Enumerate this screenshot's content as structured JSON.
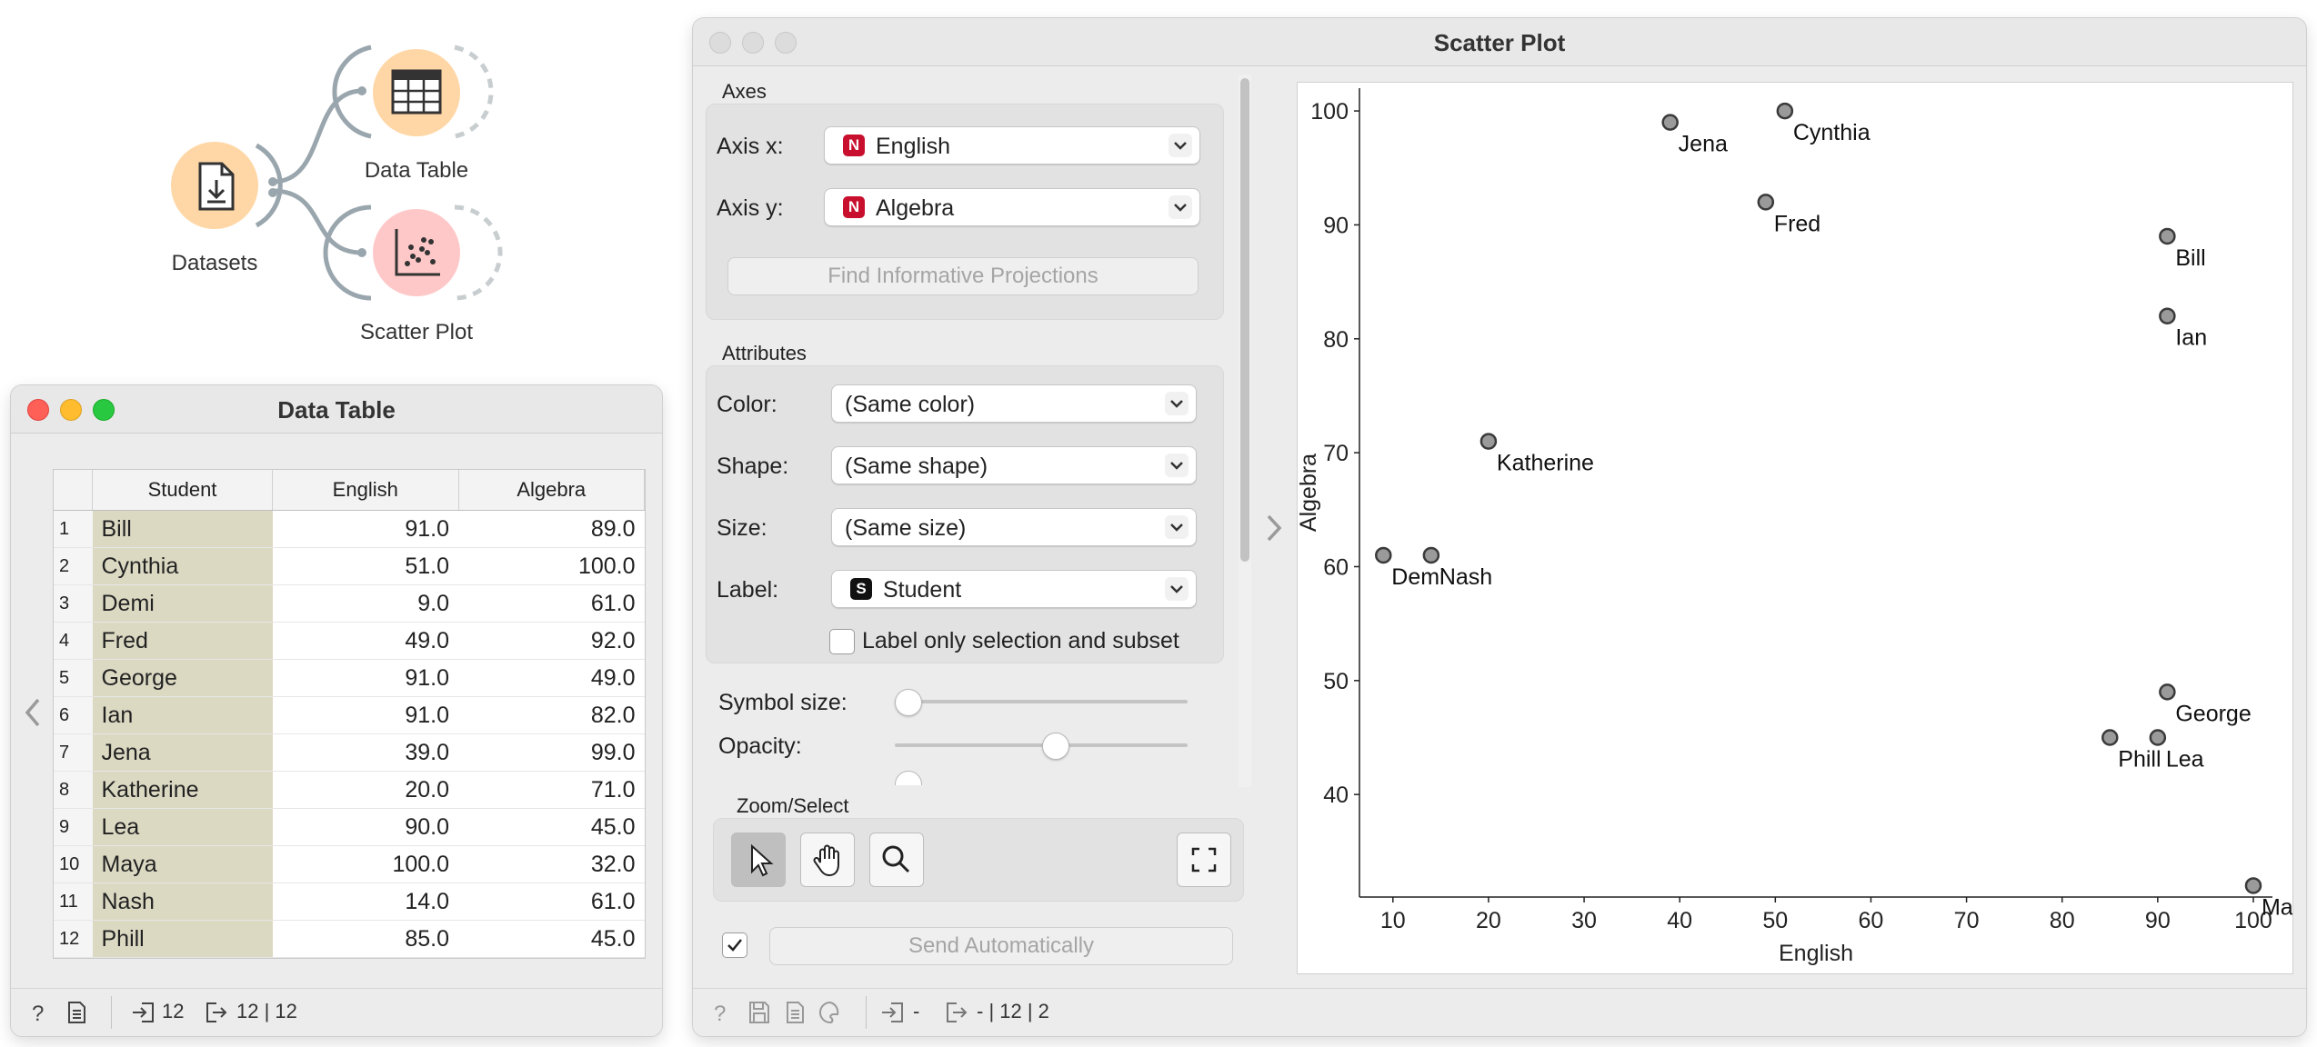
{
  "workflow": {
    "nodes": [
      {
        "label": "Datasets",
        "icon": "dataset-icon",
        "color": "#ffd7a6"
      },
      {
        "label": "Data Table",
        "icon": "table-icon",
        "color": "#ffd7a6"
      },
      {
        "label": "Scatter Plot",
        "icon": "scatter-icon",
        "color": "#ffc8c8"
      }
    ]
  },
  "data_table": {
    "title": "Data Table",
    "columns": [
      "Student",
      "English",
      "Algebra"
    ],
    "rows": [
      {
        "n": "1",
        "student": "Bill",
        "english": "91.0",
        "algebra": "89.0"
      },
      {
        "n": "2",
        "student": "Cynthia",
        "english": "51.0",
        "algebra": "100.0"
      },
      {
        "n": "3",
        "student": "Demi",
        "english": "9.0",
        "algebra": "61.0"
      },
      {
        "n": "4",
        "student": "Fred",
        "english": "49.0",
        "algebra": "92.0"
      },
      {
        "n": "5",
        "student": "George",
        "english": "91.0",
        "algebra": "49.0"
      },
      {
        "n": "6",
        "student": "Ian",
        "english": "91.0",
        "algebra": "82.0"
      },
      {
        "n": "7",
        "student": "Jena",
        "english": "39.0",
        "algebra": "99.0"
      },
      {
        "n": "8",
        "student": "Katherine",
        "english": "20.0",
        "algebra": "71.0"
      },
      {
        "n": "9",
        "student": "Lea",
        "english": "90.0",
        "algebra": "45.0"
      },
      {
        "n": "10",
        "student": "Maya",
        "english": "100.0",
        "algebra": "32.0"
      },
      {
        "n": "11",
        "student": "Nash",
        "english": "14.0",
        "algebra": "61.0"
      },
      {
        "n": "12",
        "student": "Phill",
        "english": "85.0",
        "algebra": "45.0"
      }
    ],
    "status": {
      "input": "12",
      "output": "12 | 12"
    }
  },
  "scatter": {
    "title": "Scatter Plot",
    "axes_group": "Axes",
    "axis_x_label": "Axis x:",
    "axis_x_value": "English",
    "axis_y_label": "Axis y:",
    "axis_y_value": "Algebra",
    "numeric_badge": "N",
    "string_badge": "S",
    "find_projections": "Find Informative Projections",
    "attributes_group": "Attributes",
    "color_label": "Color:",
    "color_value": "(Same color)",
    "shape_label": "Shape:",
    "shape_value": "(Same shape)",
    "size_label": "Size:",
    "size_value": "(Same size)",
    "label_label": "Label:",
    "label_value": "Student",
    "label_only": "Label only selection and subset",
    "symbol_size": "Symbol size:",
    "opacity": "Opacity:",
    "symbol_size_level": 0.0,
    "opacity_level": 0.55,
    "zoom_group": "Zoom/Select",
    "send_auto": "Send Automatically",
    "status": {
      "input": "-",
      "output": "- | 12 | 2"
    }
  },
  "colors": {
    "numeric_badge": "#c8102e",
    "point_fill": "#9a9a9a",
    "point_stroke": "#3a3a3a"
  },
  "chart_data": {
    "type": "scatter",
    "xlabel": "English",
    "ylabel": "Algebra",
    "xlim": [
      6.5,
      102
    ],
    "ylim": [
      31,
      102
    ],
    "xticks": [
      10,
      20,
      30,
      40,
      50,
      60,
      70,
      80,
      90,
      100
    ],
    "yticks": [
      40,
      50,
      60,
      70,
      80,
      90,
      100
    ],
    "points": [
      {
        "label": "Bill",
        "x": 91,
        "y": 89
      },
      {
        "label": "Cynthia",
        "x": 51,
        "y": 100
      },
      {
        "label": "Demi",
        "x": 9,
        "y": 61
      },
      {
        "label": "Fred",
        "x": 49,
        "y": 92
      },
      {
        "label": "George",
        "x": 91,
        "y": 49
      },
      {
        "label": "Ian",
        "x": 91,
        "y": 82
      },
      {
        "label": "Jena",
        "x": 39,
        "y": 99
      },
      {
        "label": "Katherine",
        "x": 20,
        "y": 71
      },
      {
        "label": "Lea",
        "x": 90,
        "y": 45
      },
      {
        "label": "Maya",
        "x": 100,
        "y": 32
      },
      {
        "label": "Nash",
        "x": 14,
        "y": 61
      },
      {
        "label": "Phill",
        "x": 85,
        "y": 45
      }
    ],
    "grid": false
  }
}
